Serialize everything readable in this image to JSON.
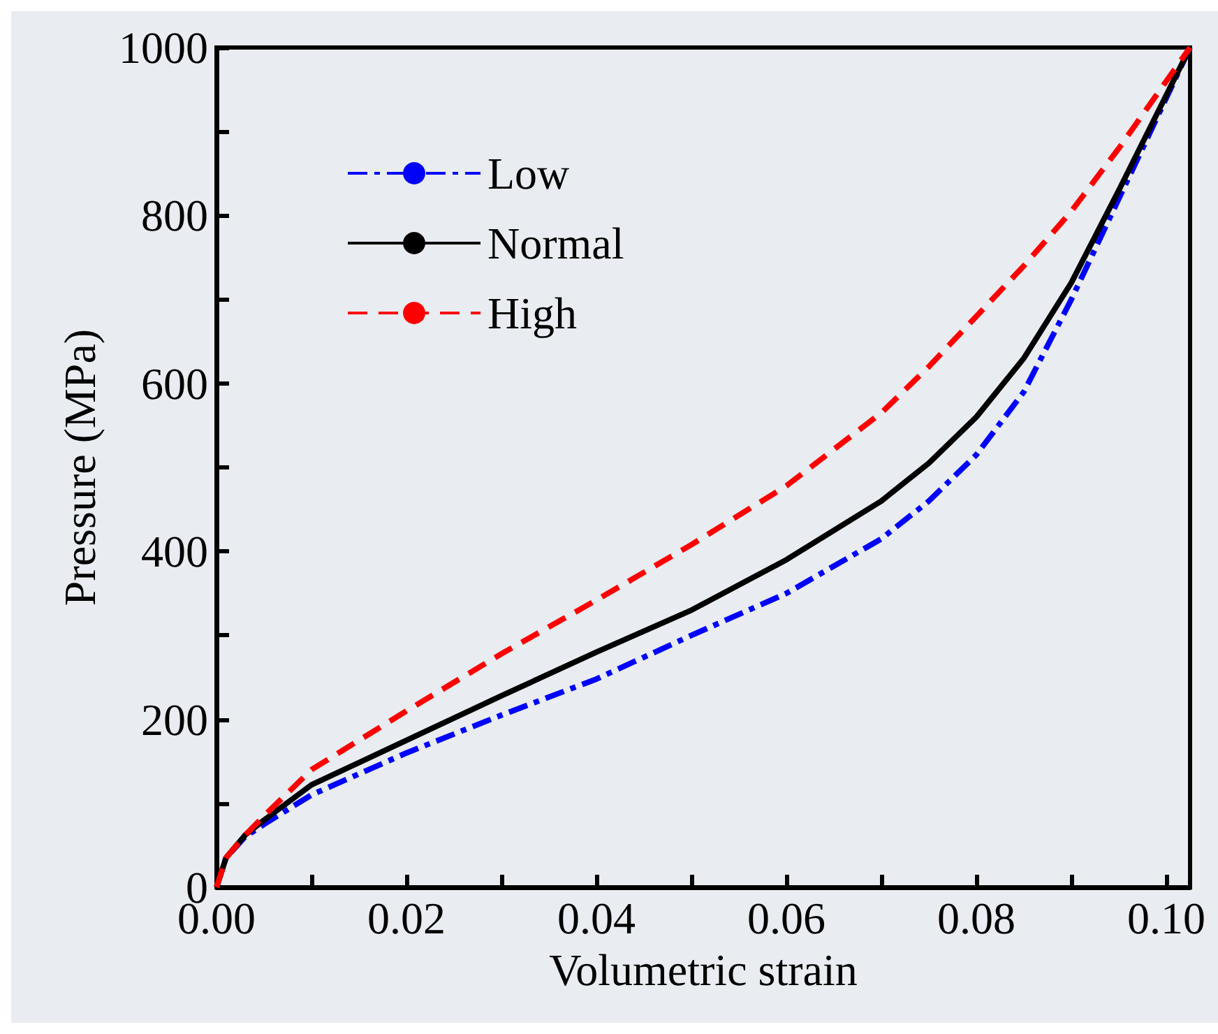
{
  "chart_data": {
    "type": "line",
    "xlabel": "Volumetric strain",
    "ylabel": "Pressure (MPa)",
    "xlim": [
      0,
      0.1025
    ],
    "ylim": [
      0,
      1000
    ],
    "xticks": [
      {
        "value": 0,
        "label": "0.00"
      },
      {
        "value": 0.01,
        "label": null
      },
      {
        "value": 0.02,
        "label": "0.02"
      },
      {
        "value": 0.03,
        "label": null
      },
      {
        "value": 0.04,
        "label": "0.04"
      },
      {
        "value": 0.05,
        "label": null
      },
      {
        "value": 0.06,
        "label": "0.06"
      },
      {
        "value": 0.07,
        "label": null
      },
      {
        "value": 0.08,
        "label": "0.08"
      },
      {
        "value": 0.09,
        "label": null
      },
      {
        "value": 0.1,
        "label": "0.10"
      }
    ],
    "yticks": [
      0,
      {
        "value": 100,
        "label": null
      },
      200,
      {
        "value": 300,
        "label": null
      },
      400,
      {
        "value": 500,
        "label": null
      },
      600,
      {
        "value": 700,
        "label": null
      },
      800,
      {
        "value": 900,
        "label": null
      },
      1000
    ],
    "grid": false,
    "legend": "top left",
    "marker": "none",
    "series": [
      {
        "name": "Low",
        "color": "#0000ff",
        "line_style": "dashdot",
        "x": [
          0,
          0.001,
          0.003,
          0.005,
          0.01,
          0.02,
          0.03,
          0.04,
          0.05,
          0.06,
          0.07,
          0.075,
          0.08,
          0.085,
          0.09,
          0.095,
          0.1025
        ],
        "values": [
          0,
          35,
          60,
          75,
          110,
          160,
          205,
          248,
          300,
          350,
          415,
          460,
          515,
          590,
          700,
          820,
          1000
        ]
      },
      {
        "name": "Normal",
        "color": "#000000",
        "line_style": "solid",
        "x": [
          0,
          0.001,
          0.003,
          0.005,
          0.01,
          0.02,
          0.03,
          0.04,
          0.05,
          0.06,
          0.07,
          0.075,
          0.08,
          0.085,
          0.09,
          0.095,
          0.1025
        ],
        "values": [
          0,
          35,
          62,
          80,
          122,
          175,
          228,
          280,
          330,
          390,
          460,
          505,
          560,
          630,
          720,
          830,
          1000
        ]
      },
      {
        "name": "High",
        "color": "#ff0000",
        "line_style": "dashed",
        "x": [
          0,
          0.001,
          0.003,
          0.005,
          0.01,
          0.02,
          0.03,
          0.04,
          0.05,
          0.06,
          0.07,
          0.075,
          0.08,
          0.085,
          0.09,
          0.095,
          0.1025
        ],
        "values": [
          0,
          35,
          62,
          85,
          140,
          210,
          278,
          342,
          408,
          478,
          565,
          620,
          680,
          740,
          805,
          880,
          1000
        ]
      }
    ]
  }
}
